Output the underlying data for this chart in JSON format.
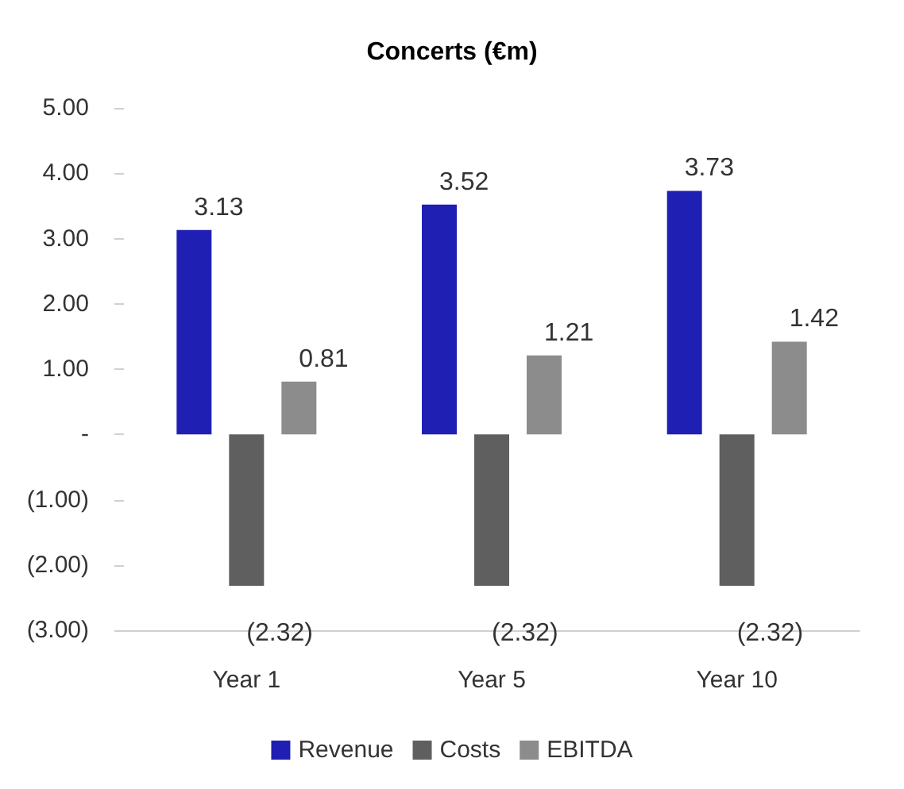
{
  "chart_data": {
    "type": "bar",
    "title": "Concerts (€m)",
    "categories": [
      "Year 1",
      "Year 5",
      "Year 10"
    ],
    "series": [
      {
        "name": "Revenue",
        "color": "#1f1fb4",
        "values": [
          3.13,
          3.52,
          3.73
        ],
        "value_labels": [
          "3.13",
          "3.52",
          "3.73"
        ]
      },
      {
        "name": "Costs",
        "color": "#5f5f5f",
        "values": [
          -2.32,
          -2.32,
          -2.32
        ],
        "value_labels": [
          "(2.32)",
          "(2.32)",
          "(2.32)"
        ]
      },
      {
        "name": "EBITDA",
        "color": "#8c8c8c",
        "values": [
          0.81,
          1.21,
          1.42
        ],
        "value_labels": [
          "0.81",
          "1.21",
          "1.42"
        ]
      }
    ],
    "ylim": [
      -3,
      5
    ],
    "yticks": [
      {
        "value": -3,
        "label": "(3.00)"
      },
      {
        "value": -2,
        "label": "(2.00)"
      },
      {
        "value": -1,
        "label": "(1.00)"
      },
      {
        "value": 0,
        "label": "-"
      },
      {
        "value": 1,
        "label": "1.00"
      },
      {
        "value": 2,
        "label": "2.00"
      },
      {
        "value": 3,
        "label": "3.00"
      },
      {
        "value": 4,
        "label": "4.00"
      },
      {
        "value": 5,
        "label": "5.00"
      }
    ],
    "grid": false,
    "legend": "bottom"
  }
}
